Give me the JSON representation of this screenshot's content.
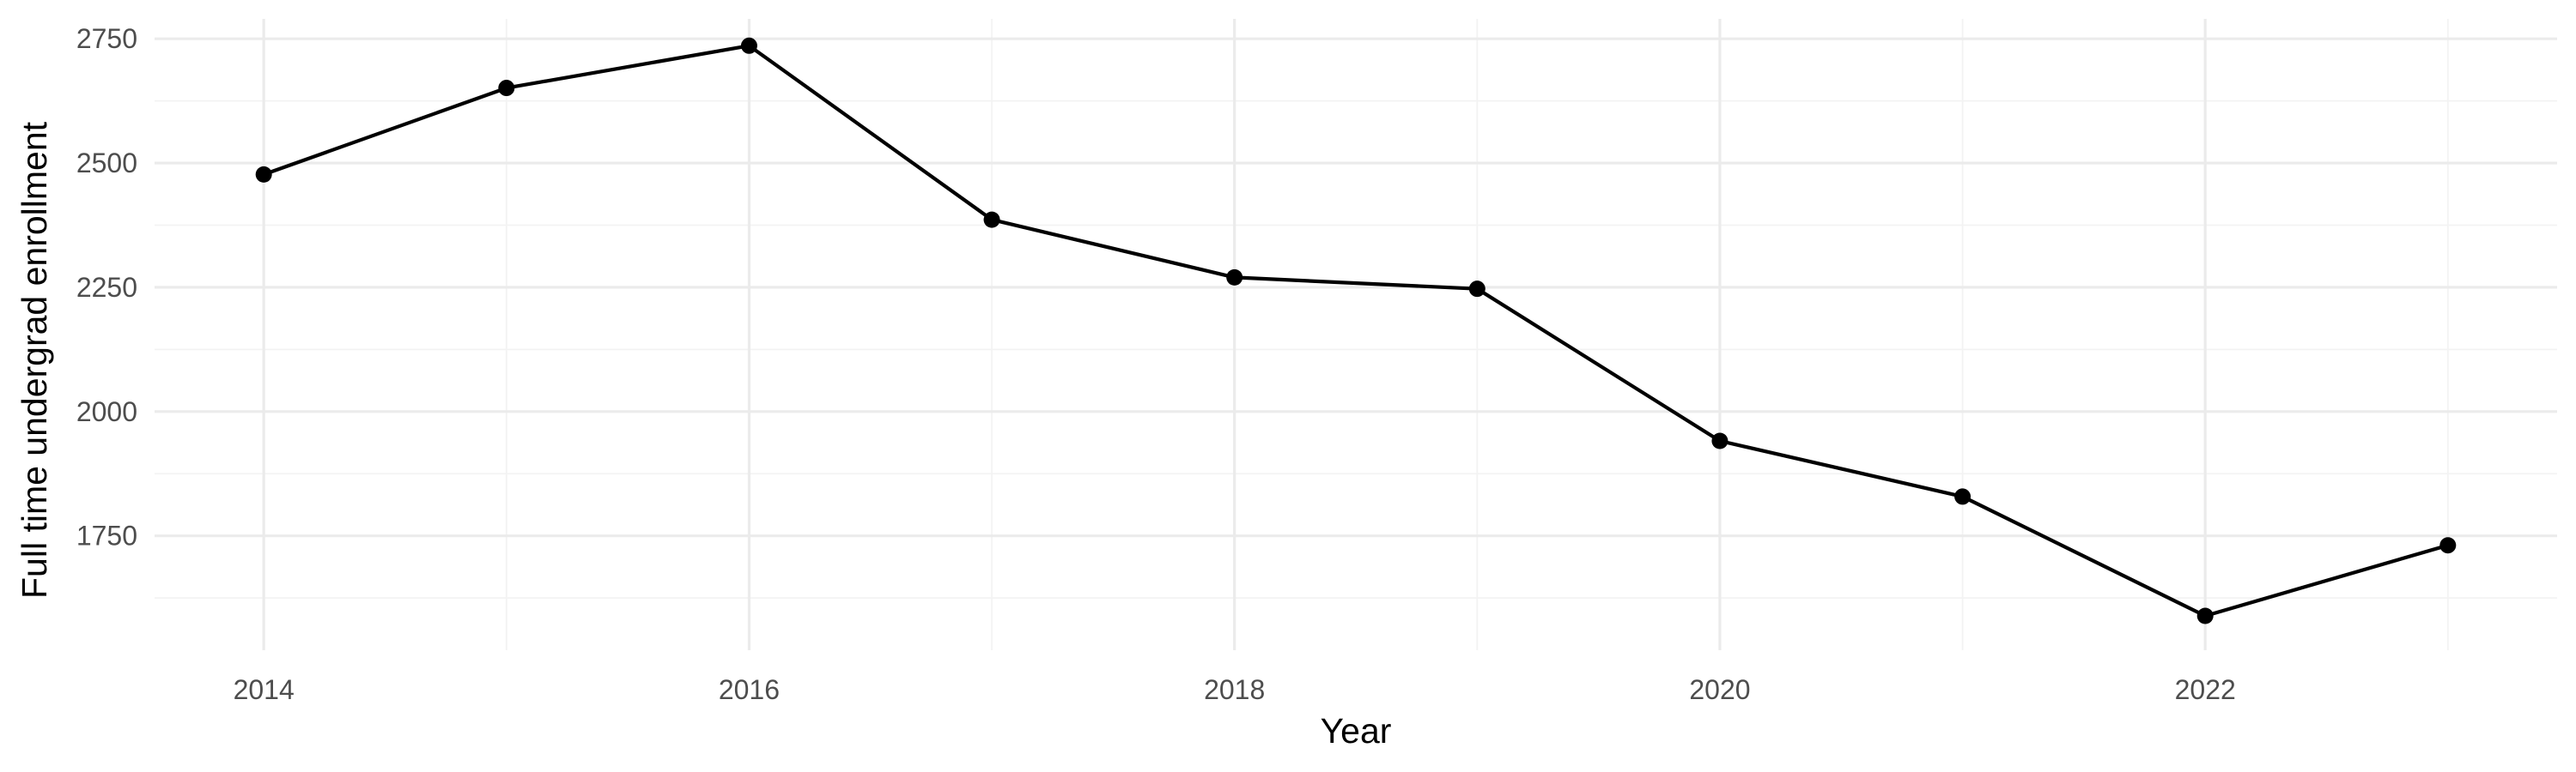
{
  "chart_data": {
    "type": "line",
    "title": "",
    "xlabel": "Year",
    "ylabel": "Full time undergrad enrollment",
    "x": [
      2014,
      2015,
      2016,
      2017,
      2018,
      2019,
      2020,
      2021,
      2022,
      2023
    ],
    "series": [
      {
        "values": [
          2477,
          2651,
          2736,
          2386,
          2270,
          2247,
          1941,
          1829,
          1589,
          1731
        ],
        "color": "#000000"
      }
    ],
    "xlim": [
      2013.55,
      2023.45
    ],
    "ylim": [
      1520,
      2790
    ],
    "x_ticks": [
      2014,
      2016,
      2018,
      2020,
      2022
    ],
    "x_tick_labels": [
      "2014",
      "2016",
      "2018",
      "2020",
      "2022"
    ],
    "y_ticks": [
      1750,
      2000,
      2250,
      2500,
      2750
    ],
    "y_tick_labels": [
      "1750",
      "2000",
      "2250",
      "2500",
      "2750"
    ],
    "x_minor_ticks": [
      2015,
      2017,
      2019,
      2021,
      2023
    ],
    "y_minor_ticks": [
      1625,
      1875,
      2125,
      2375,
      2625
    ],
    "grid": true,
    "legend": "none",
    "background": "#ffffff",
    "gridline_color": "#ebebeb"
  }
}
